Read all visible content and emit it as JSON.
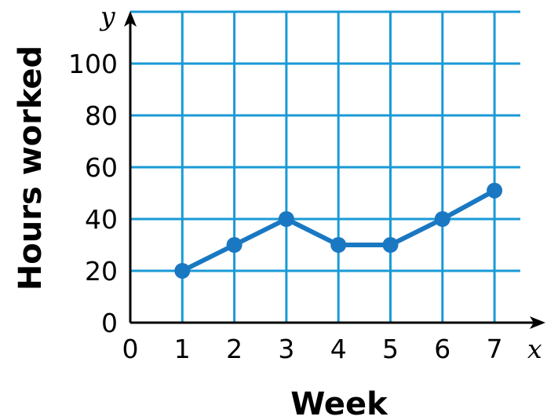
{
  "chart_data": {
    "type": "line",
    "xlabel": "Week",
    "ylabel": "Hours worked",
    "x_axis_var": "x",
    "y_axis_var": "y",
    "xlim": [
      0,
      7
    ],
    "ylim": [
      0,
      100
    ],
    "x_ticks": [
      "0",
      "1",
      "2",
      "3",
      "4",
      "5",
      "6",
      "7"
    ],
    "y_ticks": [
      "0",
      "20",
      "40",
      "60",
      "80",
      "100"
    ],
    "grid": true,
    "series": [
      {
        "x": [
          1,
          2,
          3,
          4,
          5,
          6,
          7
        ],
        "y": [
          20,
          30,
          40,
          30,
          30,
          40,
          51
        ]
      }
    ],
    "colors": {
      "grid": "#1a9ad6",
      "series": "#1a78c2",
      "axis": "#000000"
    }
  }
}
